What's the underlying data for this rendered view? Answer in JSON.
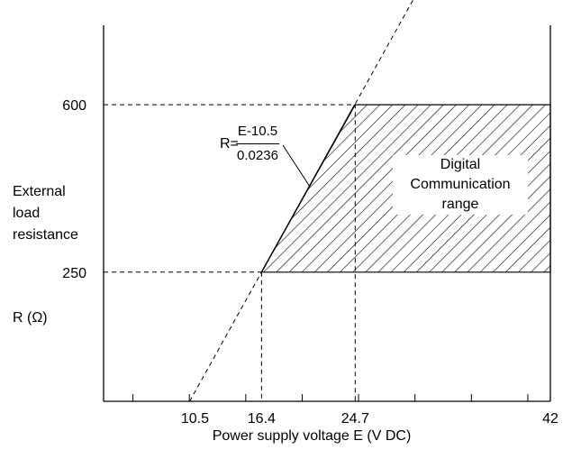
{
  "chart_data": {
    "type": "area",
    "xlabel": "Power supply voltage  E (V DC)",
    "ylabel_lines": [
      "External",
      "load",
      "resistance"
    ],
    "ylabel_symbol": "R (Ω)",
    "x_ticks": [
      10.5,
      16.4,
      24.7,
      42
    ],
    "y_ticks": [
      250,
      600
    ],
    "xlim": [
      2.4,
      42.0
    ],
    "ylim": [
      -20,
      800
    ],
    "grid": false,
    "formula": {
      "lhs": "R=",
      "numerator": "E-10.5",
      "denominator": "0.0236"
    },
    "region": {
      "label_lines": [
        "Digital",
        "Communication",
        "range"
      ],
      "vertices": [
        [
          16.4,
          250
        ],
        [
          24.7,
          600
        ],
        [
          42,
          600
        ],
        [
          42,
          250
        ]
      ]
    },
    "load_line": {
      "intercept_E": 10.5,
      "slope_E_per_ohm": 0.0236
    },
    "reference_lines": [
      {
        "axis": "y",
        "value": 600
      },
      {
        "axis": "y",
        "value": 250
      },
      {
        "axis": "x",
        "value": 16.4
      },
      {
        "axis": "x",
        "value": 24.7
      }
    ]
  }
}
